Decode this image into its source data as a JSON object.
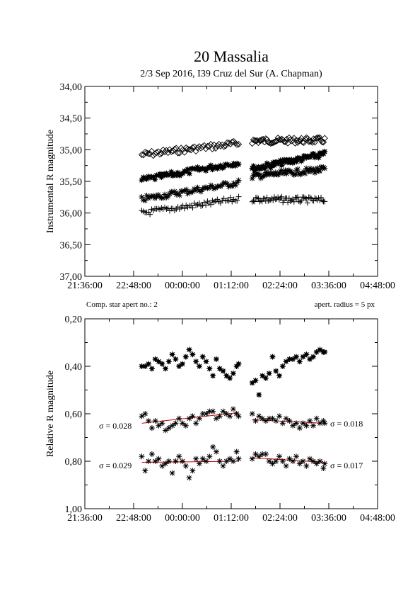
{
  "header": {
    "title": "20 Massalia",
    "subtitle": "2/3 Sep 2016, I39 Cruz del Sur (A. Chapman)"
  },
  "colors": {
    "axis": "#000000",
    "marker": "#000000",
    "fit": "#cc0000",
    "background": "#ffffff"
  },
  "chart_data": [
    {
      "type": "scatter",
      "ylabel": "Instrumental R magnitude",
      "y_inverted": true,
      "ylim": [
        37.0,
        34.0
      ],
      "y_ticks": [
        "34,00",
        "34,50",
        "35,00",
        "35,50",
        "36,00",
        "36,50",
        "37,00"
      ],
      "x_ticks": [
        "21:36:00",
        "22:48:00",
        "00:00:00",
        "01:12:00",
        "02:24:00",
        "03:36:00",
        "04:48:00"
      ],
      "xlim": [
        "21:36:00",
        "04:48:00"
      ],
      "series": [
        {
          "marker": "diamond",
          "segments": [
            {
              "from": "23:00",
              "to": "01:23",
              "start": 35.08,
              "end": 34.9
            },
            {
              "from": "01:43",
              "to": "03:30",
              "start": 34.86,
              "end": 34.85
            }
          ]
        },
        {
          "marker": "filled-star",
          "segments": [
            {
              "from": "23:00",
              "to": "01:23",
              "start": 35.48,
              "end": 35.2
            },
            {
              "from": "01:43",
              "to": "03:30",
              "start": 35.3,
              "end": 35.07
            }
          ]
        },
        {
          "marker": "asterisk",
          "segments": [
            {
              "from": "23:00",
              "to": "01:23",
              "start": 35.78,
              "end": 35.52
            },
            {
              "from": "01:43",
              "to": "03:30",
              "start": 35.42,
              "end": 35.31
            }
          ]
        },
        {
          "marker": "plus",
          "segments": [
            {
              "from": "23:00",
              "to": "01:23",
              "start": 36.0,
              "end": 35.78
            },
            {
              "from": "01:43",
              "to": "03:30",
              "start": 35.78,
              "end": 35.8
            }
          ]
        }
      ]
    },
    {
      "type": "scatter",
      "ylabel": "Relative R magnitude",
      "y_inverted": true,
      "ylim": [
        1.0,
        0.2
      ],
      "y_ticks": [
        "0,20",
        "0,40",
        "0,60",
        "0,80",
        "1,00"
      ],
      "x_ticks": [
        "21:36:00",
        "22:48:00",
        "00:00:00",
        "01:12:00",
        "02:24:00",
        "03:36:00",
        "04:48:00"
      ],
      "xlim": [
        "21:36:00",
        "04:48:00"
      ],
      "note_left": "Comp. star apert no.: 2",
      "note_right": "apert. radius = 5 px",
      "series": [
        {
          "marker": "filled-star",
          "points": [
            [
              "23:00",
              0.4
            ],
            [
              "23:05",
              0.4
            ],
            [
              "23:10",
              0.39
            ],
            [
              "23:15",
              0.41
            ],
            [
              "23:20",
              0.37
            ],
            [
              "23:25",
              0.38
            ],
            [
              "23:30",
              0.39
            ],
            [
              "23:35",
              0.41
            ],
            [
              "23:40",
              0.38
            ],
            [
              "23:45",
              0.35
            ],
            [
              "23:50",
              0.37
            ],
            [
              "23:55",
              0.4
            ],
            [
              "00:00",
              0.39
            ],
            [
              "00:05",
              0.36
            ],
            [
              "00:10",
              0.33
            ],
            [
              "00:15",
              0.35
            ],
            [
              "00:20",
              0.38
            ],
            [
              "00:25",
              0.4
            ],
            [
              "00:30",
              0.36
            ],
            [
              "00:35",
              0.38
            ],
            [
              "00:40",
              0.41
            ],
            [
              "00:45",
              0.44
            ],
            [
              "00:50",
              0.37
            ],
            [
              "00:55",
              0.41
            ],
            [
              "01:00",
              0.42
            ],
            [
              "01:05",
              0.44
            ],
            [
              "01:10",
              0.45
            ],
            [
              "01:15",
              0.43
            ],
            [
              "01:20",
              0.4
            ],
            [
              "01:23",
              0.39
            ],
            [
              "01:43",
              0.47
            ],
            [
              "01:48",
              0.46
            ],
            [
              "01:53",
              0.52
            ],
            [
              "01:58",
              0.44
            ],
            [
              "02:03",
              0.45
            ],
            [
              "02:08",
              0.43
            ],
            [
              "02:13",
              0.36
            ],
            [
              "02:18",
              0.42
            ],
            [
              "02:23",
              0.44
            ],
            [
              "02:28",
              0.4
            ],
            [
              "02:33",
              0.38
            ],
            [
              "02:38",
              0.37
            ],
            [
              "02:43",
              0.37
            ],
            [
              "02:48",
              0.36
            ],
            [
              "02:53",
              0.38
            ],
            [
              "02:58",
              0.36
            ],
            [
              "03:03",
              0.35
            ],
            [
              "03:08",
              0.37
            ],
            [
              "03:13",
              0.36
            ],
            [
              "03:18",
              0.34
            ],
            [
              "03:23",
              0.33
            ],
            [
              "03:28",
              0.34
            ],
            [
              "03:30",
              0.34
            ]
          ]
        },
        {
          "marker": "asterisk",
          "sigma_left": "σ = 0.028",
          "sigma_right": "σ = 0.018",
          "fit": [
            [
              "23:00",
              0.64
            ],
            [
              "01:23",
              0.595
            ],
            [
              "01:43",
              0.625
            ],
            [
              "03:30",
              0.64
            ]
          ],
          "points": [
            [
              "23:00",
              0.61
            ],
            [
              "23:05",
              0.6
            ],
            [
              "23:10",
              0.63
            ],
            [
              "23:15",
              0.66
            ],
            [
              "23:20",
              0.63
            ],
            [
              "23:25",
              0.65
            ],
            [
              "23:30",
              0.64
            ],
            [
              "23:35",
              0.67
            ],
            [
              "23:40",
              0.66
            ],
            [
              "23:45",
              0.65
            ],
            [
              "23:50",
              0.64
            ],
            [
              "23:55",
              0.62
            ],
            [
              "00:00",
              0.64
            ],
            [
              "00:05",
              0.65
            ],
            [
              "00:10",
              0.62
            ],
            [
              "00:15",
              0.61
            ],
            [
              "00:20",
              0.64
            ],
            [
              "00:25",
              0.62
            ],
            [
              "00:30",
              0.6
            ],
            [
              "00:35",
              0.6
            ],
            [
              "00:40",
              0.59
            ],
            [
              "00:45",
              0.59
            ],
            [
              "00:50",
              0.62
            ],
            [
              "00:55",
              0.61
            ],
            [
              "01:00",
              0.59
            ],
            [
              "01:05",
              0.6
            ],
            [
              "01:10",
              0.61
            ],
            [
              "01:15",
              0.58
            ],
            [
              "01:20",
              0.6
            ],
            [
              "01:23",
              0.61
            ],
            [
              "01:43",
              0.6
            ],
            [
              "01:48",
              0.63
            ],
            [
              "01:53",
              0.61
            ],
            [
              "01:58",
              0.62
            ],
            [
              "02:03",
              0.63
            ],
            [
              "02:08",
              0.62
            ],
            [
              "02:13",
              0.62
            ],
            [
              "02:18",
              0.63
            ],
            [
              "02:23",
              0.61
            ],
            [
              "02:28",
              0.64
            ],
            [
              "02:33",
              0.62
            ],
            [
              "02:38",
              0.63
            ],
            [
              "02:43",
              0.65
            ],
            [
              "02:48",
              0.64
            ],
            [
              "02:53",
              0.66
            ],
            [
              "02:58",
              0.64
            ],
            [
              "03:03",
              0.65
            ],
            [
              "03:08",
              0.63
            ],
            [
              "03:13",
              0.65
            ],
            [
              "03:18",
              0.62
            ],
            [
              "03:23",
              0.64
            ],
            [
              "03:28",
              0.63
            ],
            [
              "03:30",
              0.64
            ]
          ]
        },
        {
          "marker": "asterisk",
          "sigma_left": "σ = 0.029",
          "sigma_right": "σ = 0.017",
          "fit": [
            [
              "23:00",
              0.805
            ],
            [
              "01:23",
              0.8
            ],
            [
              "01:43",
              0.785
            ],
            [
              "03:30",
              0.805
            ]
          ],
          "points": [
            [
              "23:00",
              0.78
            ],
            [
              "23:05",
              0.84
            ],
            [
              "23:10",
              0.8
            ],
            [
              "23:15",
              0.77
            ],
            [
              "23:20",
              0.8
            ],
            [
              "23:25",
              0.79
            ],
            [
              "23:30",
              0.82
            ],
            [
              "23:35",
              0.81
            ],
            [
              "23:40",
              0.8
            ],
            [
              "23:45",
              0.85
            ],
            [
              "23:50",
              0.8
            ],
            [
              "23:55",
              0.78
            ],
            [
              "00:00",
              0.8
            ],
            [
              "00:05",
              0.82
            ],
            [
              "00:10",
              0.87
            ],
            [
              "00:15",
              0.84
            ],
            [
              "00:20",
              0.79
            ],
            [
              "00:25",
              0.81
            ],
            [
              "00:30",
              0.79
            ],
            [
              "00:35",
              0.8
            ],
            [
              "00:40",
              0.78
            ],
            [
              "00:45",
              0.74
            ],
            [
              "00:50",
              0.76
            ],
            [
              "00:55",
              0.8
            ],
            [
              "01:00",
              0.82
            ],
            [
              "01:05",
              0.8
            ],
            [
              "01:10",
              0.79
            ],
            [
              "01:15",
              0.8
            ],
            [
              "01:20",
              0.76
            ],
            [
              "01:23",
              0.79
            ],
            [
              "01:43",
              0.79
            ],
            [
              "01:48",
              0.77
            ],
            [
              "01:53",
              0.78
            ],
            [
              "01:58",
              0.77
            ],
            [
              "02:03",
              0.77
            ],
            [
              "02:08",
              0.8
            ],
            [
              "02:13",
              0.81
            ],
            [
              "02:18",
              0.8
            ],
            [
              "02:23",
              0.78
            ],
            [
              "02:28",
              0.8
            ],
            [
              "02:33",
              0.82
            ],
            [
              "02:38",
              0.79
            ],
            [
              "02:43",
              0.8
            ],
            [
              "02:48",
              0.78
            ],
            [
              "02:53",
              0.81
            ],
            [
              "02:58",
              0.8
            ],
            [
              "03:03",
              0.82
            ],
            [
              "03:08",
              0.79
            ],
            [
              "03:13",
              0.8
            ],
            [
              "03:18",
              0.81
            ],
            [
              "03:23",
              0.8
            ],
            [
              "03:28",
              0.83
            ],
            [
              "03:30",
              0.81
            ]
          ]
        }
      ]
    }
  ]
}
